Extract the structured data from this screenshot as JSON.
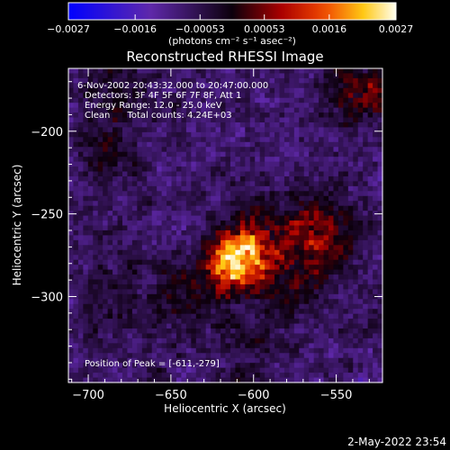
{
  "chart_data": {
    "type": "heatmap",
    "title": "Reconstructed RHESSI Image",
    "xlabel": "Heliocentric X (arcsec)",
    "ylabel": "Heliocentric Y (arcsec)",
    "xlim": [
      -712,
      -522
    ],
    "ylim": [
      -352,
      -162
    ],
    "x_ticks": [
      -700,
      -650,
      -600,
      -550
    ],
    "y_ticks": [
      -200,
      -250,
      -300
    ],
    "colorbar": {
      "min": -0.0027,
      "max": 0.0027,
      "tick_values": [
        -0.0027,
        -0.0016,
        -0.00053,
        0.00053,
        0.0016,
        0.0027
      ],
      "tick_labels": [
        "-0.0027",
        "-0.0016",
        "-0.00053",
        "0.00053",
        "0.0016",
        "0.0027"
      ],
      "units": "(photons cm⁻² s⁻¹ asec⁻²)"
    },
    "annotations": [
      "6-Nov-2002 20:43:32.000 to 20:47:00.000",
      "Detectors: 3F 4F 5F 6F 7F 8F, Att 1",
      "Energy Range: 12.0 - 25.0 keV",
      "Clean      Total counts: 4.24E+03"
    ],
    "peak_label": "Position of Peak = [-611,-279]",
    "peak": [
      -611,
      -279
    ],
    "sources": [
      {
        "x": -611,
        "y": -279,
        "amplitude": 0.0027,
        "width": 11
      },
      {
        "x": -598,
        "y": -266,
        "amplitude": 0.0011,
        "width": 18
      },
      {
        "x": -558,
        "y": -258,
        "amplitude": 0.001,
        "width": 16
      },
      {
        "x": -572,
        "y": -290,
        "amplitude": 0.0007,
        "width": 18
      },
      {
        "x": -640,
        "y": -300,
        "amplitude": 0.0007,
        "width": 16
      },
      {
        "x": -535,
        "y": -175,
        "amplitude": 0.0013,
        "width": 14
      },
      {
        "x": -682,
        "y": -178,
        "amplitude": 0.0007,
        "width": 14
      },
      {
        "x": -688,
        "y": -215,
        "amplitude": 0.0006,
        "width": 14
      },
      {
        "x": -690,
        "y": -305,
        "amplitude": 0.0005,
        "width": 15
      },
      {
        "x": -600,
        "y": -335,
        "amplitude": 0.0004,
        "width": 18
      }
    ],
    "background_level": -0.0008
  },
  "timestamp": "2-May-2022 23:54"
}
